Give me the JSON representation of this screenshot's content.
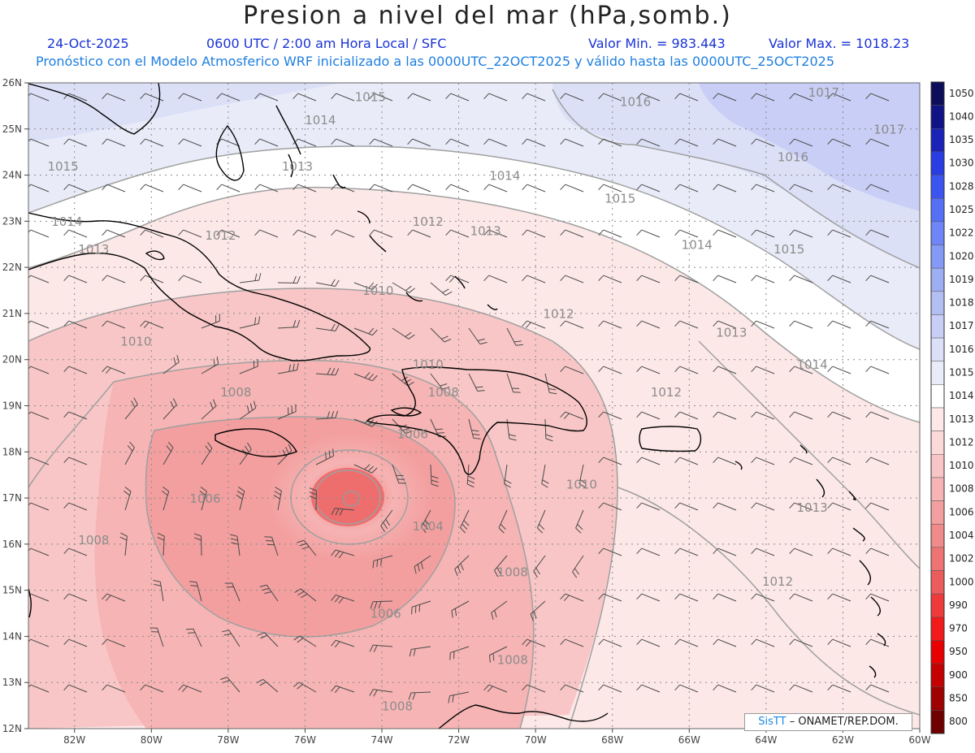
{
  "header": {
    "title": "Presion a nivel del mar (hPa,somb.)",
    "date": "24-Oct-2025",
    "time": "0600 UTC / 2:00 am Hora Local / SFC",
    "value_min": "Valor Min. = 983.443",
    "value_max": "Valor Max. = 1018.23",
    "model_info": "Pronóstico con el Modelo Atmosferico WRF inicializado a las 0000UTC_22OCT2025 y válido hasta las  0000UTC_25OCT2025"
  },
  "map": {
    "lon_range": [
      -83.2,
      -60
    ],
    "lat_range": [
      12,
      26
    ],
    "lon_ticks": [
      "82W",
      "80W",
      "78W",
      "76W",
      "74W",
      "72W",
      "70W",
      "68W",
      "66W",
      "64W",
      "62W",
      "60W"
    ],
    "lat_ticks": [
      "12N",
      "13N",
      "14N",
      "15N",
      "16N",
      "17N",
      "18N",
      "19N",
      "20N",
      "21N",
      "22N",
      "23N",
      "24N",
      "25N",
      "26N"
    ],
    "contour_labels": [
      {
        "text": "1015",
        "lon": -74.3,
        "lat": 25.6
      },
      {
        "text": "1014",
        "lon": -75.6,
        "lat": 25.1
      },
      {
        "text": "1016",
        "lon": -67.4,
        "lat": 25.5
      },
      {
        "text": "1017",
        "lon": -62.5,
        "lat": 25.7
      },
      {
        "text": "1017",
        "lon": -60.8,
        "lat": 24.9
      },
      {
        "text": "1016",
        "lon": -63.3,
        "lat": 24.3
      },
      {
        "text": "1015",
        "lon": -82.3,
        "lat": 24.1
      },
      {
        "text": "1013",
        "lon": -76.2,
        "lat": 24.1
      },
      {
        "text": "1014",
        "lon": -70.8,
        "lat": 23.9
      },
      {
        "text": "1015",
        "lon": -67.8,
        "lat": 23.4
      },
      {
        "text": "1014",
        "lon": -82.2,
        "lat": 22.9
      },
      {
        "text": "1012",
        "lon": -72.8,
        "lat": 22.9
      },
      {
        "text": "1013",
        "lon": -71.3,
        "lat": 22.7
      },
      {
        "text": "1012",
        "lon": -78.2,
        "lat": 22.6
      },
      {
        "text": "1014",
        "lon": -65.8,
        "lat": 22.4
      },
      {
        "text": "1015",
        "lon": -63.4,
        "lat": 22.3
      },
      {
        "text": "1013",
        "lon": -81.5,
        "lat": 22.3
      },
      {
        "text": "1010",
        "lon": -74.1,
        "lat": 21.4
      },
      {
        "text": "1012",
        "lon": -69.4,
        "lat": 20.9
      },
      {
        "text": "1013",
        "lon": -64.9,
        "lat": 20.5
      },
      {
        "text": "1010",
        "lon": -80.4,
        "lat": 20.3
      },
      {
        "text": "1010",
        "lon": -72.8,
        "lat": 19.8
      },
      {
        "text": "1014",
        "lon": -62.8,
        "lat": 19.8
      },
      {
        "text": "1008",
        "lon": -77.8,
        "lat": 19.2
      },
      {
        "text": "1008",
        "lon": -72.4,
        "lat": 19.2
      },
      {
        "text": "1012",
        "lon": -66.6,
        "lat": 19.2
      },
      {
        "text": "1006",
        "lon": -73.2,
        "lat": 18.3
      },
      {
        "text": "1010",
        "lon": -68.8,
        "lat": 17.2
      },
      {
        "text": "1013",
        "lon": -62.8,
        "lat": 16.7
      },
      {
        "text": "1006",
        "lon": -78.6,
        "lat": 16.9
      },
      {
        "text": "1004",
        "lon": -72.8,
        "lat": 16.3
      },
      {
        "text": "1008",
        "lon": -81.5,
        "lat": 16.0
      },
      {
        "text": "1008",
        "lon": -70.6,
        "lat": 15.3
      },
      {
        "text": "1012",
        "lon": -63.7,
        "lat": 15.1
      },
      {
        "text": "1006",
        "lon": -73.9,
        "lat": 14.4
      },
      {
        "text": "1008",
        "lon": -70.6,
        "lat": 13.4
      },
      {
        "text": "1008",
        "lon": -73.6,
        "lat": 12.4
      }
    ]
  },
  "legend": {
    "levels": [
      "1050",
      "1040",
      "1035",
      "1030",
      "1028",
      "1025",
      "1022",
      "1020",
      "1019",
      "1018",
      "1017",
      "1016",
      "1015",
      "1014",
      "1013",
      "1012",
      "1010",
      "1008",
      "1006",
      "1004",
      "1002",
      "1000",
      "990",
      "970",
      "950",
      "900",
      "850",
      "800"
    ],
    "colors": [
      "#0d0d5a",
      "#101385",
      "#1a22b8",
      "#2a3ce3",
      "#3d55f0",
      "#5670f5",
      "#6e86f7",
      "#8599f6",
      "#9eaef3",
      "#b3bff3",
      "#c8cef5",
      "#dbe0f7",
      "#e9ecf8",
      "#ffffff",
      "#fde8e8",
      "#fbd9d9",
      "#f8c6c6",
      "#f6b4b4",
      "#f39f9f",
      "#f18a8a",
      "#ee7474",
      "#eb5c5c",
      "#ee3a3a",
      "#f21b1b",
      "#e80000",
      "#c40000",
      "#9c0000",
      "#6e0000"
    ]
  },
  "credit": {
    "brand": "SisTT",
    "text": "– ONAMET/REP.DOM."
  }
}
